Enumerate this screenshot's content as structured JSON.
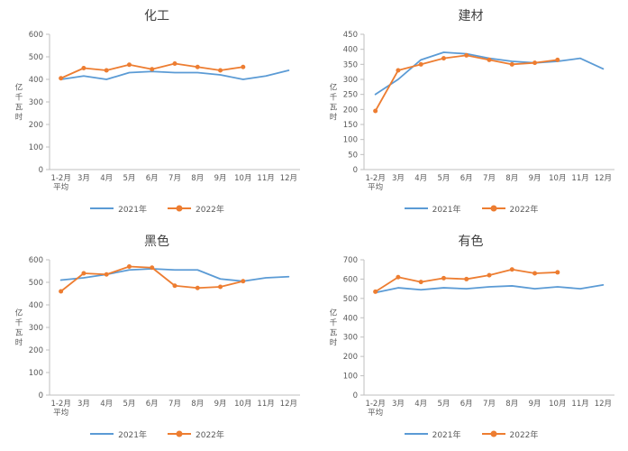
{
  "colors": {
    "blue": "#5B9BD5",
    "orange": "#ED7D31",
    "axis": "#bfbfbf",
    "text": "#595959"
  },
  "chart_data": [
    {
      "type": "line",
      "title": "化工",
      "ylabel": "亿千瓦时",
      "ylim": [
        0,
        600
      ],
      "ytick_step": 100,
      "grid": false,
      "legend_position": "bottom",
      "categories": [
        "1-2月\n平均",
        "3月",
        "4月",
        "5月",
        "6月",
        "7月",
        "8月",
        "9月",
        "10月",
        "11月",
        "12月"
      ],
      "series": [
        {
          "name": "2021年",
          "color": "#5B9BD5",
          "markers": false,
          "values": [
            400,
            415,
            400,
            430,
            435,
            430,
            430,
            420,
            400,
            415,
            440
          ]
        },
        {
          "name": "2022年",
          "color": "#ED7D31",
          "markers": true,
          "values": [
            405,
            450,
            440,
            465,
            445,
            470,
            455,
            440,
            455
          ]
        }
      ]
    },
    {
      "type": "line",
      "title": "建材",
      "ylabel": "亿千瓦时",
      "ylim": [
        0,
        450
      ],
      "ytick_step": 50,
      "grid": false,
      "legend_position": "bottom",
      "categories": [
        "1-2月\n平均",
        "3月",
        "4月",
        "5月",
        "6月",
        "7月",
        "8月",
        "9月",
        "10月",
        "11月",
        "12月"
      ],
      "series": [
        {
          "name": "2021年",
          "color": "#5B9BD5",
          "markers": false,
          "values": [
            250,
            300,
            365,
            390,
            385,
            370,
            360,
            355,
            360,
            370,
            335
          ]
        },
        {
          "name": "2022年",
          "color": "#ED7D31",
          "markers": true,
          "values": [
            195,
            330,
            350,
            370,
            380,
            365,
            350,
            355,
            365
          ]
        }
      ]
    },
    {
      "type": "line",
      "title": "黑色",
      "ylabel": "亿千瓦时",
      "ylim": [
        0,
        600
      ],
      "ytick_step": 100,
      "grid": false,
      "legend_position": "bottom",
      "categories": [
        "1-2月\n平均",
        "3月",
        "4月",
        "5月",
        "6月",
        "7月",
        "8月",
        "9月",
        "10月",
        "11月",
        "12月"
      ],
      "series": [
        {
          "name": "2021年",
          "color": "#5B9BD5",
          "markers": false,
          "values": [
            510,
            520,
            535,
            555,
            560,
            555,
            555,
            515,
            505,
            520,
            525
          ]
        },
        {
          "name": "2022年",
          "color": "#ED7D31",
          "markers": true,
          "values": [
            460,
            540,
            535,
            570,
            565,
            485,
            475,
            480,
            505
          ]
        }
      ]
    },
    {
      "type": "line",
      "title": "有色",
      "ylabel": "亿千瓦时",
      "ylim": [
        0,
        700
      ],
      "ytick_step": 100,
      "grid": false,
      "legend_position": "bottom",
      "categories": [
        "1-2月\n平均",
        "3月",
        "4月",
        "5月",
        "6月",
        "7月",
        "8月",
        "9月",
        "10月",
        "11月",
        "12月"
      ],
      "series": [
        {
          "name": "2021年",
          "color": "#5B9BD5",
          "markers": false,
          "values": [
            530,
            555,
            545,
            555,
            550,
            560,
            565,
            550,
            560,
            550,
            570
          ]
        },
        {
          "name": "2022年",
          "color": "#ED7D31",
          "markers": true,
          "values": [
            535,
            610,
            585,
            605,
            600,
            620,
            650,
            630,
            635
          ]
        }
      ]
    }
  ]
}
